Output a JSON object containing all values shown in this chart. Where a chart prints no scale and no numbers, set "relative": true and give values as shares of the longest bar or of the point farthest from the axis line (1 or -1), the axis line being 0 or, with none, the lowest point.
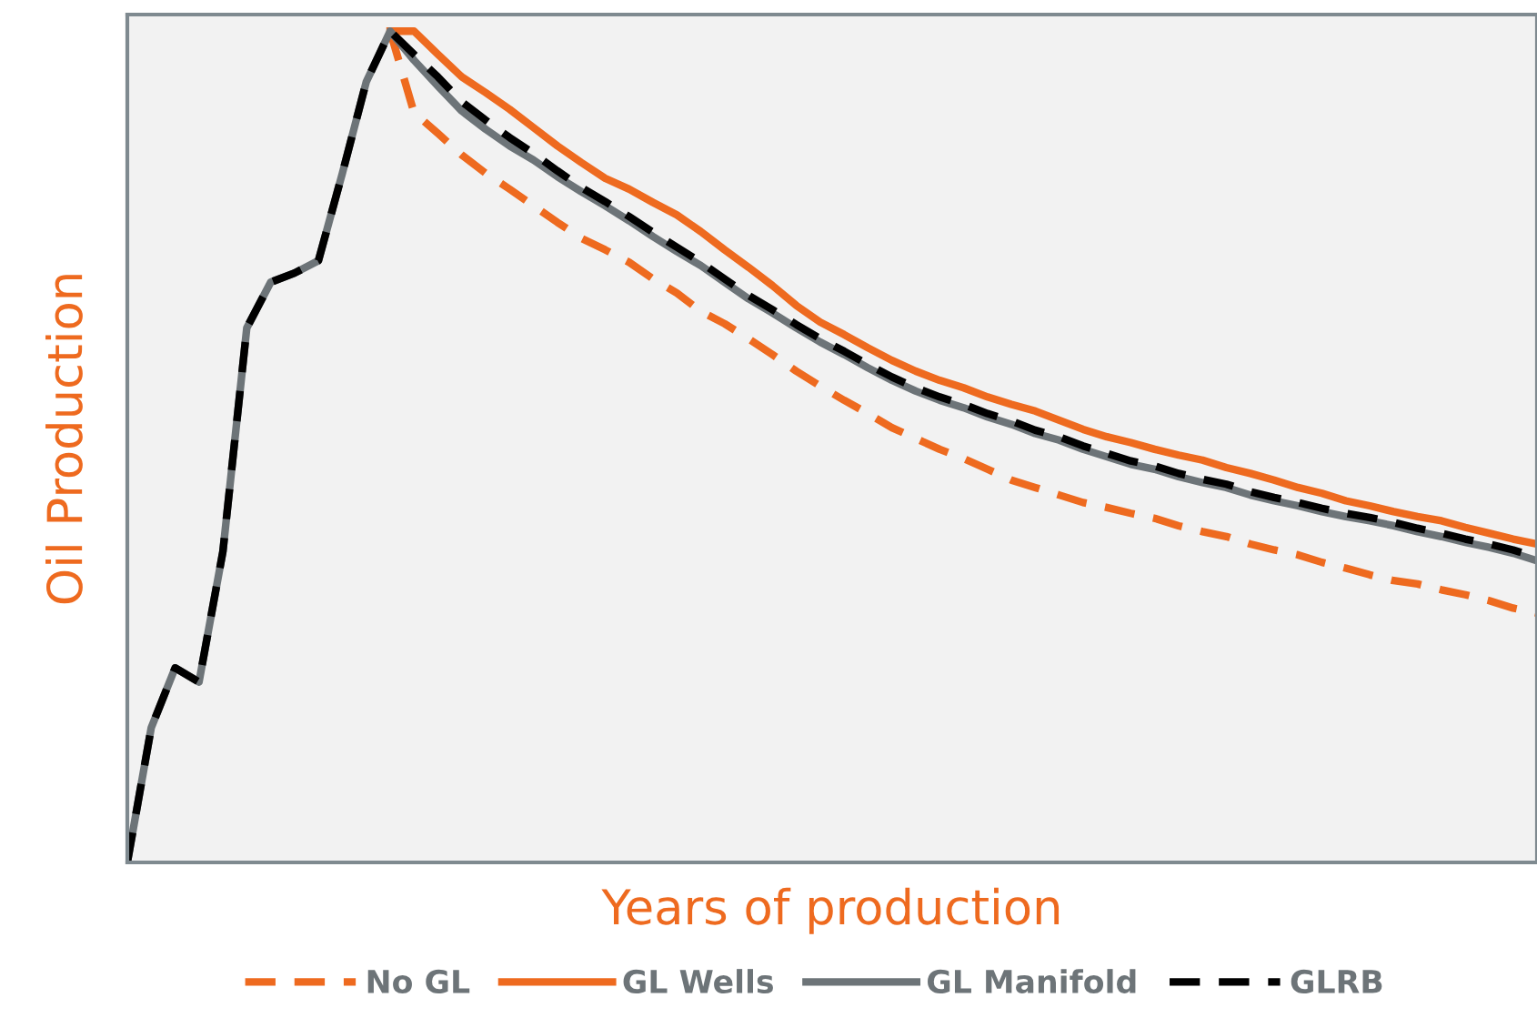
{
  "chart_data": {
    "type": "line",
    "relative": true,
    "xlabel": "Years of production",
    "ylabel": "Oil Production",
    "legend": "bottom",
    "tick_labels": false,
    "categories": [
      null,
      null,
      null,
      null,
      null,
      null,
      null,
      null,
      null,
      null,
      null,
      null,
      null,
      null,
      null,
      null,
      null,
      null,
      null,
      null,
      null,
      null,
      null,
      null,
      null,
      null,
      null,
      null,
      null,
      null,
      null,
      null,
      null,
      null,
      null,
      null,
      null,
      null,
      null,
      null,
      null,
      null,
      null,
      null,
      null,
      null,
      null,
      null,
      null,
      null,
      null,
      null,
      null,
      null,
      null,
      null,
      null,
      null,
      null,
      null
    ],
    "series": [
      {
        "name": "No GL",
        "color": "#ee6a1f",
        "line_style": "dashed",
        "values": [
          null,
          null,
          null,
          null,
          null,
          null,
          null,
          null,
          null,
          null,
          null,
          1,
          0.902,
          0.877,
          0.851,
          0.829,
          0.81,
          0.79,
          0.77,
          0.751,
          0.737,
          0.722,
          0.702,
          0.685,
          0.663,
          0.648,
          0.63,
          0.611,
          0.591,
          0.573,
          0.556,
          0.54,
          0.523,
          0.51,
          0.497,
          0.486,
          0.473,
          0.46,
          0.451,
          0.442,
          0.433,
          0.427,
          0.42,
          0.414,
          0.405,
          0.398,
          0.392,
          0.383,
          0.376,
          0.37,
          0.361,
          0.354,
          0.346,
          0.339,
          0.335,
          0.328,
          0.322,
          0.315,
          0.306,
          0.3
        ]
      },
      {
        "name": "GL Wells",
        "color": "#ee6a1f",
        "line_style": "solid",
        "values": [
          null,
          null,
          null,
          null,
          null,
          null,
          null,
          null,
          null,
          null,
          null,
          1,
          1.0,
          0.972,
          0.945,
          0.926,
          0.906,
          0.884,
          0.862,
          0.842,
          0.823,
          0.81,
          0.794,
          0.779,
          0.759,
          0.737,
          0.716,
          0.694,
          0.67,
          0.65,
          0.635,
          0.619,
          0.604,
          0.591,
          0.58,
          0.571,
          0.56,
          0.551,
          0.543,
          0.532,
          0.521,
          0.512,
          0.505,
          0.497,
          0.49,
          0.484,
          0.475,
          0.468,
          0.46,
          0.451,
          0.444,
          0.435,
          0.429,
          0.422,
          0.416,
          0.411,
          0.403,
          0.396,
          0.389,
          0.383
        ]
      },
      {
        "name": "GL Manifold",
        "color": "#6d7478",
        "line_style": "solid",
        "values": [
          0,
          0.162,
          0.234,
          0.217,
          0.374,
          0.643,
          0.698,
          0.709,
          0.724,
          0.829,
          0.939,
          1,
          0.965,
          0.934,
          0.904,
          0.882,
          0.862,
          0.845,
          0.825,
          0.807,
          0.79,
          0.772,
          0.753,
          0.735,
          0.718,
          0.698,
          0.678,
          0.661,
          0.643,
          0.626,
          0.611,
          0.595,
          0.58,
          0.567,
          0.556,
          0.547,
          0.536,
          0.527,
          0.516,
          0.508,
          0.497,
          0.488,
          0.479,
          0.473,
          0.464,
          0.457,
          0.451,
          0.442,
          0.435,
          0.429,
          0.422,
          0.416,
          0.411,
          0.405,
          0.398,
          0.392,
          0.385,
          0.379,
          0.372,
          0.363
        ]
      },
      {
        "name": "GLRB",
        "color": "#000000",
        "line_style": "dashed",
        "values": [
          0,
          0.162,
          0.234,
          0.217,
          0.374,
          0.643,
          0.698,
          0.709,
          0.724,
          0.829,
          0.939,
          1,
          0.972,
          0.945,
          0.915,
          0.893,
          0.872,
          0.853,
          0.832,
          0.812,
          0.795,
          0.777,
          0.758,
          0.74,
          0.722,
          0.702,
          0.682,
          0.665,
          0.647,
          0.63,
          0.615,
          0.599,
          0.584,
          0.571,
          0.56,
          0.551,
          0.54,
          0.531,
          0.52,
          0.512,
          0.501,
          0.492,
          0.483,
          0.477,
          0.468,
          0.461,
          0.455,
          0.446,
          0.439,
          0.433,
          0.426,
          0.42,
          0.415,
          0.409,
          0.402,
          0.396,
          0.389,
          0.383,
          0.376,
          0.367
        ]
      }
    ]
  }
}
